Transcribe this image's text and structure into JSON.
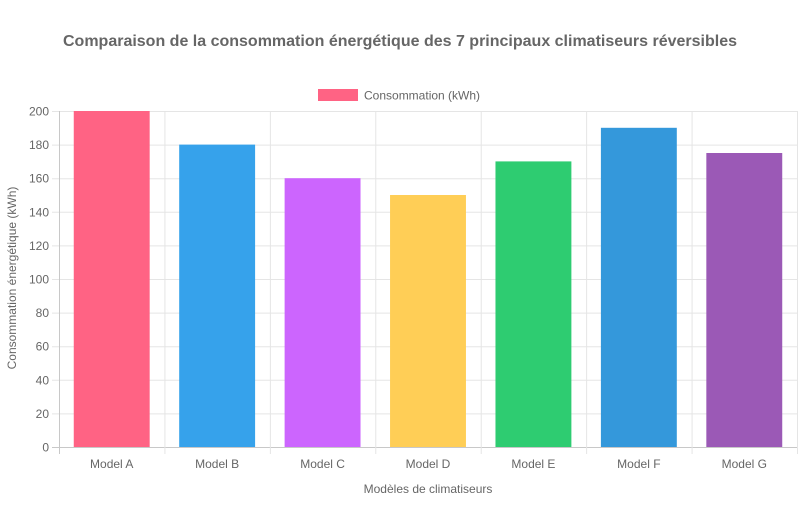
{
  "chart_data": {
    "type": "bar",
    "title": "Comparaison de la consommation énergétique des 7 principaux climatiseurs réversibles",
    "xlabel": "Modèles de climatiseurs",
    "ylabel": "Consommation énergétique (kWh)",
    "categories": [
      "Model A",
      "Model B",
      "Model C",
      "Model D",
      "Model E",
      "Model F",
      "Model G"
    ],
    "series": [
      {
        "name": "Consommation (kWh)",
        "values": [
          200,
          180,
          160,
          150,
          170,
          190,
          175
        ]
      }
    ],
    "bar_colors": [
      "#ff6384",
      "#36a2eb",
      "#cc65fe",
      "#ffce56",
      "#2ecc71",
      "#3498db",
      "#9b59b6"
    ],
    "legend_color": "#ff6384",
    "ylim": [
      0,
      200
    ],
    "yticks": [
      0,
      20,
      40,
      60,
      80,
      100,
      120,
      140,
      160,
      180,
      200
    ],
    "grid": true,
    "legend_position": "top"
  }
}
